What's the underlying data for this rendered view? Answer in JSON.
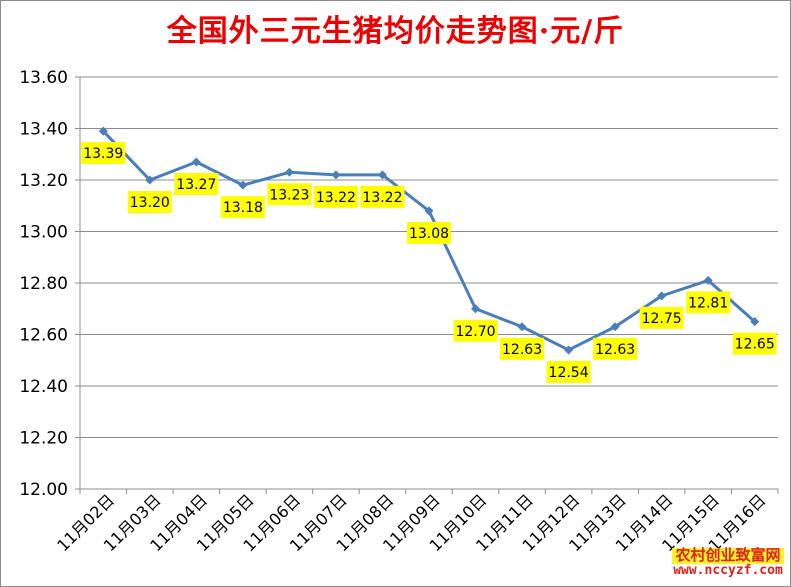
{
  "chart_data": {
    "type": "line",
    "title": "全国外三元生猪均价走势图·元/斤",
    "categories": [
      "11月02日",
      "11月03日",
      "11月04日",
      "11月05日",
      "11月06日",
      "11月07日",
      "11月08日",
      "11月09日",
      "11月10日",
      "11月11日",
      "11月12日",
      "11月13日",
      "11月14日",
      "11月15日",
      "11月16日"
    ],
    "values": [
      13.39,
      13.2,
      13.27,
      13.18,
      13.23,
      13.22,
      13.22,
      13.08,
      12.7,
      12.63,
      12.54,
      12.63,
      12.75,
      12.81,
      12.65
    ],
    "value_labels": [
      "13.39",
      "13.20",
      "13.27",
      "13.18",
      "13.23",
      "13.22",
      "13.22",
      "13.08",
      "12.70",
      "12.63",
      "12.54",
      "12.63",
      "12.75",
      "12.81",
      "12.65"
    ],
    "ylim": [
      12.0,
      13.6
    ],
    "yticks": [
      "12.00",
      "12.20",
      "12.40",
      "12.60",
      "12.80",
      "13.00",
      "13.20",
      "13.40",
      "13.60"
    ],
    "grid": true,
    "legend": "none",
    "line_color": "#4a7ebb",
    "label_background": "#ffff00"
  },
  "watermark": {
    "text": "农村创业致富网",
    "url": "www.nccyzf.com",
    "color": "#e0201a"
  }
}
